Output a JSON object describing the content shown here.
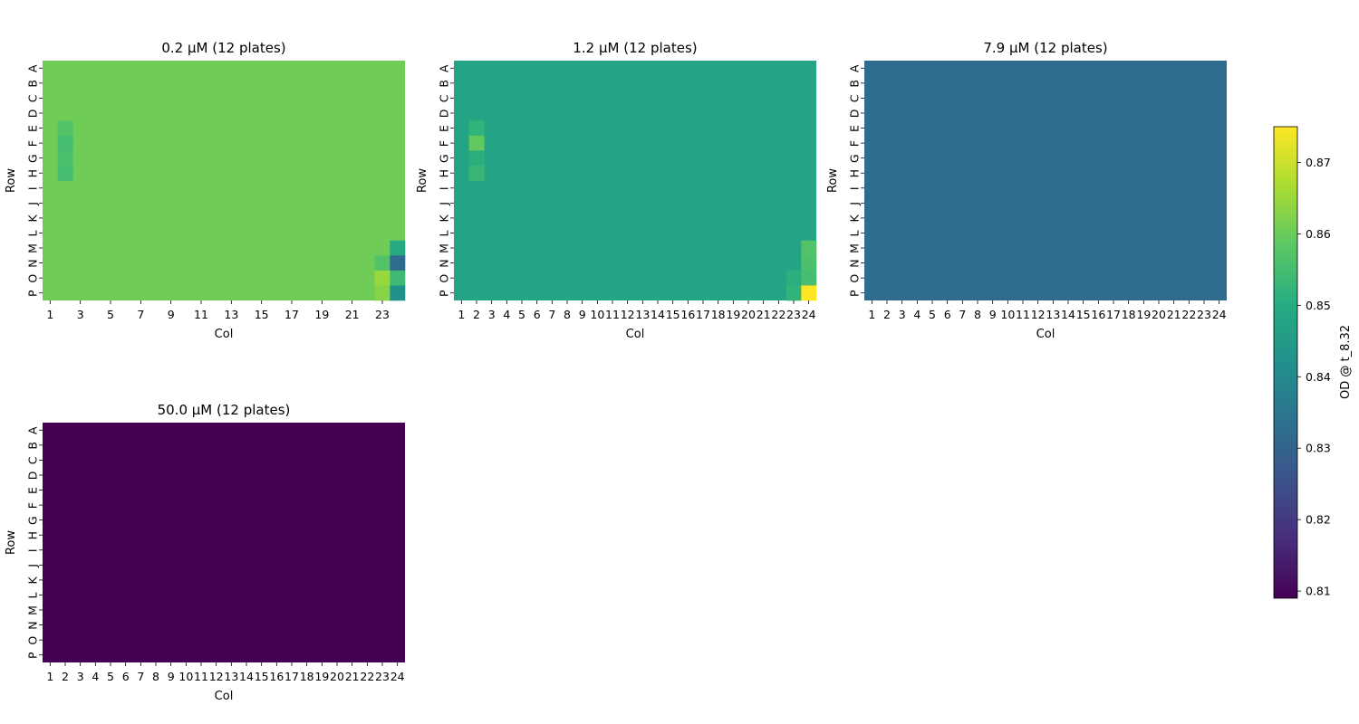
{
  "chart_data": {
    "type": "heatmap",
    "colormap": "viridis",
    "color_range": [
      0.809,
      0.875
    ],
    "colorbar": {
      "label": "OD @ t_8.32",
      "ticks": [
        "0.81",
        "0.82",
        "0.83",
        "0.84",
        "0.85",
        "0.86",
        "0.87"
      ],
      "tick_values": [
        0.81,
        0.82,
        0.83,
        0.84,
        0.85,
        0.86,
        0.87
      ]
    },
    "row_labels": [
      "A",
      "B",
      "C",
      "D",
      "E",
      "F",
      "G",
      "H",
      "I",
      "J",
      "K",
      "L",
      "M",
      "N",
      "O",
      "P"
    ],
    "col_labels": [
      "1",
      "2",
      "3",
      "4",
      "5",
      "6",
      "7",
      "8",
      "9",
      "10",
      "11",
      "12",
      "13",
      "14",
      "15",
      "16",
      "17",
      "18",
      "19",
      "20",
      "21",
      "22",
      "23",
      "24"
    ],
    "xlabel": "Col",
    "ylabel": "Row",
    "panels": [
      {
        "title": "0.2 µM (12 plates)",
        "col_ticks": [
          "1",
          "3",
          "5",
          "7",
          "9",
          "11",
          "13",
          "15",
          "17",
          "19",
          "21",
          "23"
        ],
        "col_tick_positions": [
          1,
          3,
          5,
          7,
          9,
          11,
          13,
          15,
          17,
          19,
          21,
          23
        ],
        "base": 0.8605,
        "cells": [
          {
            "row": "E",
            "col": 2,
            "value": 0.857
          },
          {
            "row": "F",
            "col": 2,
            "value": 0.855
          },
          {
            "row": "G",
            "col": 2,
            "value": 0.856
          },
          {
            "row": "H",
            "col": 2,
            "value": 0.855
          },
          {
            "row": "M",
            "col": 24,
            "value": 0.849
          },
          {
            "row": "N",
            "col": 23,
            "value": 0.857
          },
          {
            "row": "N",
            "col": 24,
            "value": 0.832
          },
          {
            "row": "O",
            "col": 23,
            "value": 0.865
          },
          {
            "row": "O",
            "col": 24,
            "value": 0.854
          },
          {
            "row": "P",
            "col": 23,
            "value": 0.863
          },
          {
            "row": "P",
            "col": 24,
            "value": 0.842
          }
        ]
      },
      {
        "title": "1.2 µM (12 plates)",
        "col_ticks": [
          "1",
          "2",
          "3",
          "4",
          "5",
          "6",
          "7",
          "8",
          "9",
          "10",
          "11",
          "12",
          "13",
          "14",
          "15",
          "16",
          "17",
          "18",
          "19",
          "20",
          "21",
          "22",
          "23",
          "24"
        ],
        "col_tick_positions": [
          1,
          2,
          3,
          4,
          5,
          6,
          7,
          8,
          9,
          10,
          11,
          12,
          13,
          14,
          15,
          16,
          17,
          18,
          19,
          20,
          21,
          22,
          23,
          24
        ],
        "base": 0.8475,
        "cells": [
          {
            "row": "E",
            "col": 2,
            "value": 0.852
          },
          {
            "row": "F",
            "col": 2,
            "value": 0.859
          },
          {
            "row": "G",
            "col": 2,
            "value": 0.851
          },
          {
            "row": "H",
            "col": 2,
            "value": 0.853
          },
          {
            "row": "M",
            "col": 24,
            "value": 0.857
          },
          {
            "row": "N",
            "col": 24,
            "value": 0.856
          },
          {
            "row": "O",
            "col": 23,
            "value": 0.851
          },
          {
            "row": "O",
            "col": 24,
            "value": 0.855
          },
          {
            "row": "P",
            "col": 23,
            "value": 0.852
          },
          {
            "row": "P",
            "col": 24,
            "value": 0.875
          }
        ]
      },
      {
        "title": "7.9 µM (12 plates)",
        "col_ticks": [
          "1",
          "2",
          "3",
          "4",
          "5",
          "6",
          "7",
          "8",
          "9",
          "10",
          "11",
          "12",
          "13",
          "14",
          "15",
          "16",
          "17",
          "18",
          "19",
          "20",
          "21",
          "22",
          "23",
          "24"
        ],
        "col_tick_positions": [
          1,
          2,
          3,
          4,
          5,
          6,
          7,
          8,
          9,
          10,
          11,
          12,
          13,
          14,
          15,
          16,
          17,
          18,
          19,
          20,
          21,
          22,
          23,
          24
        ],
        "base": 0.832,
        "cells": []
      },
      {
        "title": "50.0 µM (12 plates)",
        "col_ticks": [
          "1",
          "2",
          "3",
          "4",
          "5",
          "6",
          "7",
          "8",
          "9",
          "10",
          "11",
          "12",
          "13",
          "14",
          "15",
          "16",
          "17",
          "18",
          "19",
          "20",
          "21",
          "22",
          "23",
          "24"
        ],
        "col_tick_positions": [
          1,
          2,
          3,
          4,
          5,
          6,
          7,
          8,
          9,
          10,
          11,
          12,
          13,
          14,
          15,
          16,
          17,
          18,
          19,
          20,
          21,
          22,
          23,
          24
        ],
        "base": 0.809,
        "cells": []
      }
    ]
  }
}
